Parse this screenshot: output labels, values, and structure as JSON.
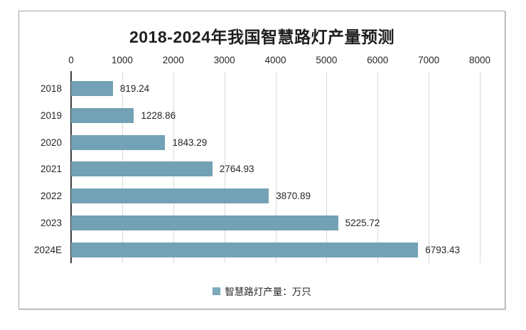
{
  "chart_data": {
    "type": "bar",
    "orientation": "horizontal",
    "title": "2018-2024年我国智慧路灯产量预测",
    "categories": [
      "2018",
      "2019",
      "2020",
      "2021",
      "2022",
      "2023",
      "2024E"
    ],
    "values": [
      819.24,
      1228.86,
      1843.29,
      2764.93,
      3870.89,
      5225.72,
      6793.43
    ],
    "value_labels": [
      "819.24",
      "1228.86",
      "1843.29",
      "2764.93",
      "3870.89",
      "5225.72",
      "6793.43"
    ],
    "series_name": "智慧路灯产量：万只",
    "x_ticks": [
      "0",
      "1000",
      "2000",
      "3000",
      "4000",
      "5000",
      "6000",
      "7000",
      "8000"
    ],
    "xlim": [
      0,
      8000
    ],
    "grid": true,
    "legend_position": "bottom",
    "axis_position": "top",
    "colors": {
      "bar": "#73a1b5",
      "legend_marker": "#7ba8bc",
      "gridline": "#d9d9d9",
      "axis_line": "#3d3d3d",
      "border": "#a3a3a3",
      "text": "#262626"
    }
  }
}
